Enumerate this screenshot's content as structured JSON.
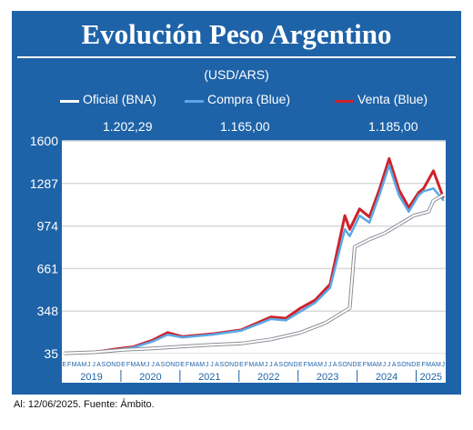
{
  "title": "Evolución Peso Argentino",
  "subtitle": "(USD/ARS)",
  "footer": "Al: 12/06/2025. Fuente: Ámbito.",
  "legend": [
    {
      "label": "Oficial (BNA)",
      "value": "1.202,29",
      "color": "#ffffff"
    },
    {
      "label": "Compra (Blue)",
      "value": "1.165,00",
      "color": "#5aa9e6"
    },
    {
      "label": "Venta (Blue)",
      "value": "1.185,00",
      "color": "#d0212a"
    }
  ],
  "colors": {
    "panel": "#1e63a8",
    "plot_background": "#ffffff",
    "gridline": "#d9d9d9",
    "oficial": "#ffffff",
    "compra": "#5aa9e6",
    "venta": "#d0212a"
  },
  "chart_data": {
    "type": "line",
    "title": "Evolución Peso Argentino",
    "subtitle": "(USD/ARS)",
    "yticks": [
      35,
      348,
      661,
      974,
      1287,
      1600
    ],
    "ytick_labels": [
      "35",
      "348",
      "661",
      "974",
      "1287",
      "1600"
    ],
    "ylim": [
      35,
      1600
    ],
    "grid": true,
    "legend_position": "top",
    "x_start": "2019-01",
    "x_end": "2025-06",
    "month_letters": [
      "E",
      "F",
      "M",
      "A",
      "M",
      "J",
      "J",
      "A",
      "S",
      "O",
      "N",
      "D"
    ],
    "year_labels": [
      "2019",
      "2020",
      "2021",
      "2022",
      "2023",
      "2024",
      "2025"
    ],
    "series": [
      {
        "name": "Oficial (BNA)",
        "x": [
          "2019-01",
          "2019-07",
          "2020-01",
          "2020-07",
          "2021-01",
          "2021-07",
          "2022-01",
          "2022-07",
          "2023-01",
          "2023-06",
          "2023-11",
          "2023-12",
          "2024-03",
          "2024-06",
          "2024-09",
          "2024-12",
          "2025-03",
          "2025-04",
          "2025-06"
        ],
        "y": [
          38,
          45,
          63,
          74,
          88,
          100,
          110,
          140,
          190,
          260,
          370,
          820,
          875,
          920,
          985,
          1050,
          1080,
          1160,
          1202
        ],
        "last_value": 1202.29
      },
      {
        "name": "Compra (Blue)",
        "x": [
          "2019-01",
          "2019-07",
          "2019-12",
          "2020-03",
          "2020-07",
          "2020-10",
          "2021-01",
          "2021-07",
          "2022-01",
          "2022-07",
          "2022-10",
          "2023-01",
          "2023-04",
          "2023-07",
          "2023-10",
          "2023-11",
          "2024-01",
          "2024-03",
          "2024-05",
          "2024-07",
          "2024-09",
          "2024-11",
          "2025-01",
          "2025-02",
          "2025-04",
          "2025-06"
        ],
        "y": [
          37,
          43,
          65,
          80,
          125,
          175,
          155,
          175,
          205,
          290,
          280,
          345,
          410,
          520,
          950,
          900,
          1050,
          1000,
          1200,
          1420,
          1200,
          1080,
          1200,
          1230,
          1250,
          1165
        ],
        "last_value": 1165.0
      },
      {
        "name": "Venta (Blue)",
        "x": [
          "2019-01",
          "2019-07",
          "2019-12",
          "2020-03",
          "2020-07",
          "2020-10",
          "2021-01",
          "2021-07",
          "2022-01",
          "2022-07",
          "2022-10",
          "2023-01",
          "2023-04",
          "2023-07",
          "2023-10",
          "2023-11",
          "2024-01",
          "2024-03",
          "2024-05",
          "2024-07",
          "2024-09",
          "2024-11",
          "2025-01",
          "2025-02",
          "2025-04",
          "2025-06"
        ],
        "y": [
          39,
          45,
          72,
          85,
          135,
          190,
          160,
          180,
          210,
          305,
          295,
          370,
          430,
          545,
          1050,
          950,
          1100,
          1040,
          1240,
          1470,
          1240,
          1110,
          1220,
          1250,
          1380,
          1185
        ],
        "last_value": 1185.0
      }
    ]
  }
}
